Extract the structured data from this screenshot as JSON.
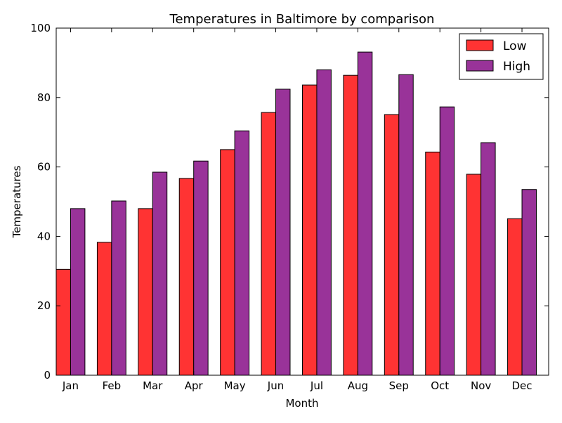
{
  "chart_data": {
    "type": "bar",
    "title": "Temperatures in Baltimore by comparison",
    "xlabel": "Month",
    "ylabel": "Temperatures",
    "categories": [
      "Jan",
      "Feb",
      "Mar",
      "Apr",
      "May",
      "Jun",
      "Jul",
      "Aug",
      "Sep",
      "Oct",
      "Nov",
      "Dec"
    ],
    "series": [
      {
        "name": "Low",
        "color": "#ff3333",
        "values": [
          30.5,
          38.3,
          48.0,
          56.7,
          65.0,
          75.7,
          83.6,
          86.4,
          75.1,
          64.3,
          57.9,
          45.1
        ]
      },
      {
        "name": "High",
        "color": "#993399",
        "values": [
          48.0,
          50.2,
          58.5,
          61.7,
          70.4,
          82.4,
          88.0,
          93.1,
          86.6,
          77.3,
          67.0,
          53.5
        ]
      }
    ],
    "ylim": [
      0,
      100
    ],
    "yticks": [
      0,
      20,
      40,
      60,
      80,
      100
    ],
    "grid": false,
    "legend_position": "top-right"
  }
}
